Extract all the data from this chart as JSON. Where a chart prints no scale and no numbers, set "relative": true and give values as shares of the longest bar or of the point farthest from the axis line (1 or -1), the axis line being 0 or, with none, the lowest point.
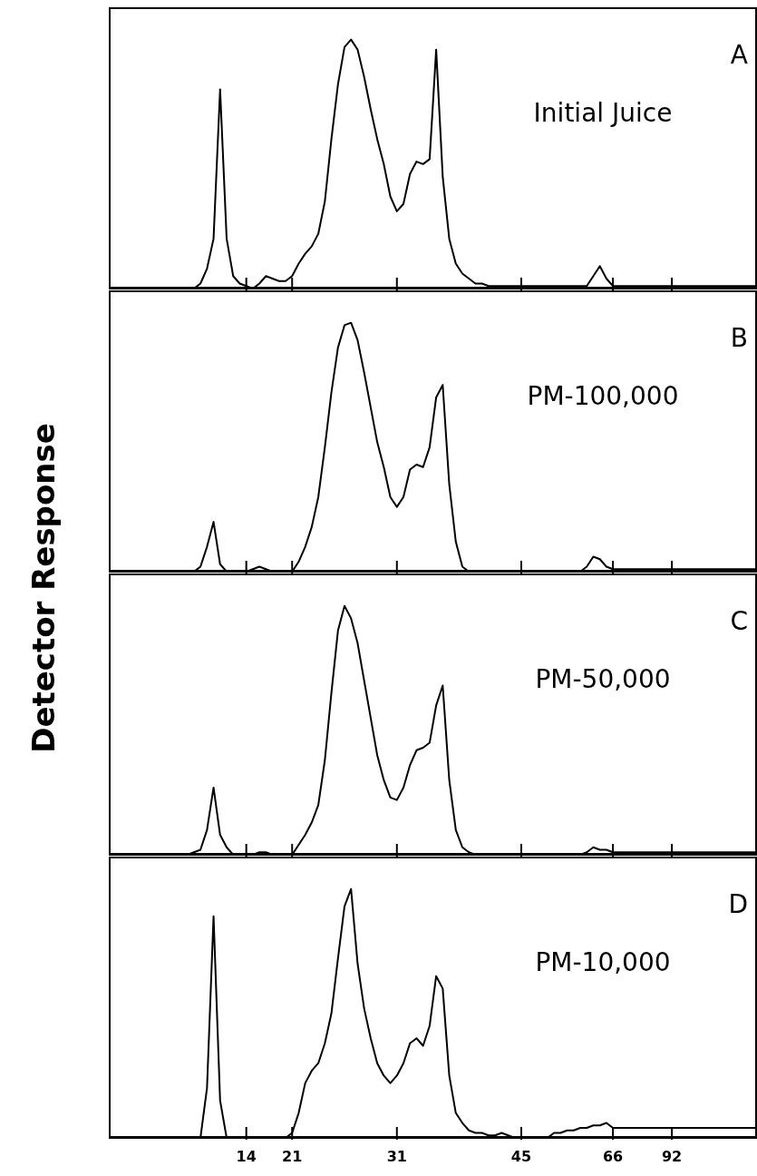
{
  "chart_data": [
    {
      "type": "line",
      "ylabel": "Detector Response",
      "relative": true,
      "tick_labels": false,
      "annotations": [
        "A",
        "Initial Juice"
      ],
      "categories": [
        null,
        null,
        null,
        null,
        null,
        null,
        null,
        null,
        null,
        null,
        null,
        null,
        null,
        null,
        null,
        null,
        null,
        null,
        null,
        null,
        null,
        "14",
        null,
        null,
        null,
        null,
        null,
        null,
        "21",
        null,
        null,
        null,
        null,
        null,
        null,
        null,
        null,
        null,
        null,
        null,
        null,
        null,
        null,
        null,
        "31",
        null,
        null,
        null,
        null,
        null,
        null,
        null,
        null,
        null,
        null,
        null,
        null,
        null,
        null,
        null,
        null,
        null,
        null,
        "45",
        null,
        null,
        null,
        null,
        null,
        null,
        null,
        null,
        null,
        null,
        null,
        null,
        null,
        "66",
        null,
        null,
        null,
        null,
        null,
        null,
        null,
        null,
        "92",
        null,
        null,
        null,
        null,
        null,
        null,
        null,
        null,
        null,
        null,
        null,
        null,
        null
      ],
      "series": [
        {
          "color": "#000000",
          "values": [
            0,
            0,
            0,
            0,
            0,
            0,
            0,
            0,
            0,
            0,
            0,
            0,
            0,
            0,
            0.02,
            0.08,
            0.2,
            0.8,
            0.2,
            0.05,
            0.02,
            0.01,
            0,
            0.02,
            0.05,
            0.04,
            0.03,
            0.03,
            0.05,
            0.1,
            0.14,
            0.17,
            0.22,
            0.35,
            0.6,
            0.82,
            0.97,
            1,
            0.96,
            0.85,
            0.72,
            0.6,
            0.5,
            0.37,
            0.31,
            0.34,
            0.46,
            0.51,
            0.5,
            0.52,
            0.96,
            0.45,
            0.2,
            0.1,
            0.06,
            0.04,
            0.02,
            0.02,
            0.01,
            0.01,
            0.01,
            0.01,
            0.01,
            0.01,
            0.01,
            0.01,
            0.01,
            0.01,
            0.01,
            0.01,
            0.01,
            0.01,
            0.01,
            0.01,
            0.05,
            0.09,
            0.04,
            0.01,
            0.01,
            0.01,
            0.01,
            0.01,
            0.01,
            0.01,
            0.01,
            0.01,
            0.01,
            0.01,
            0.01,
            0.01,
            0.01,
            0.01,
            0.01,
            0.01,
            0.01,
            0.01,
            0.01,
            0.01,
            0.01,
            0.01
          ]
        }
      ]
    },
    {
      "type": "line",
      "relative": true,
      "tick_labels": false,
      "annotations": [
        "B",
        "PM-100,000"
      ],
      "categories": [
        null,
        null,
        null,
        null,
        null,
        null,
        null,
        null,
        null,
        null,
        null,
        null,
        null,
        null,
        null,
        null,
        null,
        null,
        null,
        null,
        null,
        "14",
        null,
        null,
        null,
        null,
        null,
        null,
        "21",
        null,
        null,
        null,
        null,
        null,
        null,
        null,
        null,
        null,
        null,
        null,
        null,
        null,
        null,
        null,
        "31",
        null,
        null,
        null,
        null,
        null,
        null,
        null,
        null,
        null,
        null,
        null,
        null,
        null,
        null,
        null,
        null,
        null,
        null,
        "45",
        null,
        null,
        null,
        null,
        null,
        null,
        null,
        null,
        null,
        null,
        null,
        null,
        null,
        "66",
        null,
        null,
        null,
        null,
        null,
        null,
        null,
        null,
        "92",
        null,
        null,
        null,
        null,
        null,
        null,
        null,
        null,
        null,
        null,
        null,
        null,
        null
      ],
      "series": [
        {
          "color": "#000000",
          "values": [
            0,
            0,
            0,
            0,
            0,
            0,
            0,
            0,
            0,
            0,
            0,
            0,
            0,
            0,
            0.02,
            0.1,
            0.2,
            0.03,
            0,
            0,
            0,
            0,
            0.01,
            0.02,
            0.01,
            0,
            0,
            0,
            0,
            0.04,
            0.1,
            0.18,
            0.3,
            0.5,
            0.72,
            0.9,
            0.99,
            1,
            0.93,
            0.8,
            0.66,
            0.52,
            0.42,
            0.3,
            0.26,
            0.3,
            0.41,
            0.43,
            0.42,
            0.5,
            0.7,
            0.75,
            0.35,
            0.12,
            0.02,
            0,
            0,
            0,
            0,
            0,
            0,
            0,
            0,
            0,
            0,
            0,
            0,
            0,
            0,
            0,
            0,
            0,
            0,
            0.02,
            0.06,
            0.05,
            0.02,
            0.01,
            0.01,
            0.01,
            0.01,
            0.01,
            0.01,
            0.01,
            0.01,
            0.01,
            0.01,
            0.01,
            0.01,
            0.01,
            0.01,
            0.01,
            0.01,
            0.01,
            0.01,
            0.01,
            0.01,
            0.01,
            0.01,
            0.01
          ]
        }
      ]
    },
    {
      "type": "line",
      "relative": true,
      "tick_labels": false,
      "annotations": [
        "C",
        "PM-50,000"
      ],
      "categories": [
        null,
        null,
        null,
        null,
        null,
        null,
        null,
        null,
        null,
        null,
        null,
        null,
        null,
        null,
        null,
        null,
        null,
        null,
        null,
        null,
        null,
        "14",
        null,
        null,
        null,
        null,
        null,
        null,
        "21",
        null,
        null,
        null,
        null,
        null,
        null,
        null,
        null,
        null,
        null,
        null,
        null,
        null,
        null,
        null,
        "31",
        null,
        null,
        null,
        null,
        null,
        null,
        null,
        null,
        null,
        null,
        null,
        null,
        null,
        null,
        null,
        null,
        null,
        null,
        "45",
        null,
        null,
        null,
        null,
        null,
        null,
        null,
        null,
        null,
        null,
        null,
        null,
        null,
        "66",
        null,
        null,
        null,
        null,
        null,
        null,
        null,
        null,
        "92",
        null,
        null,
        null,
        null,
        null,
        null,
        null,
        null,
        null,
        null,
        null,
        null,
        null
      ],
      "series": [
        {
          "color": "#000000",
          "values": [
            0,
            0,
            0,
            0,
            0,
            0,
            0,
            0,
            0,
            0,
            0,
            0,
            0,
            0.01,
            0.02,
            0.1,
            0.27,
            0.08,
            0.03,
            0,
            0,
            0,
            0,
            0.01,
            0.01,
            0,
            0,
            0,
            0,
            0.04,
            0.08,
            0.13,
            0.2,
            0.38,
            0.65,
            0.9,
            1,
            0.95,
            0.85,
            0.7,
            0.55,
            0.4,
            0.3,
            0.23,
            0.22,
            0.27,
            0.36,
            0.42,
            0.43,
            0.45,
            0.6,
            0.68,
            0.3,
            0.1,
            0.03,
            0.01,
            0,
            0,
            0,
            0,
            0,
            0,
            0,
            0,
            0,
            0,
            0,
            0,
            0,
            0,
            0,
            0,
            0,
            0.01,
            0.03,
            0.02,
            0.02,
            0.01,
            0.01,
            0.01,
            0.01,
            0.01,
            0.01,
            0.01,
            0.01,
            0.01,
            0.01,
            0.01,
            0.01,
            0.01,
            0.01,
            0.01,
            0.01,
            0.01,
            0.01,
            0.01,
            0.01,
            0.01,
            0.01,
            0.01
          ]
        }
      ]
    },
    {
      "type": "line",
      "relative": true,
      "annotations": [
        "D",
        "PM-10,000"
      ],
      "categories": [
        null,
        null,
        null,
        null,
        null,
        null,
        null,
        null,
        null,
        null,
        null,
        null,
        null,
        null,
        null,
        null,
        null,
        null,
        null,
        null,
        null,
        "14",
        null,
        null,
        null,
        null,
        null,
        null,
        "21",
        null,
        null,
        null,
        null,
        null,
        null,
        null,
        null,
        null,
        null,
        null,
        null,
        null,
        null,
        null,
        "31",
        null,
        null,
        null,
        null,
        null,
        null,
        null,
        null,
        null,
        null,
        null,
        null,
        null,
        null,
        null,
        null,
        null,
        null,
        "45",
        null,
        null,
        null,
        null,
        null,
        null,
        null,
        null,
        null,
        null,
        null,
        null,
        null,
        "66",
        null,
        null,
        null,
        null,
        null,
        null,
        null,
        null,
        "92",
        null,
        null,
        null,
        null,
        null,
        null,
        null,
        null,
        null,
        null,
        null,
        null,
        null
      ],
      "series": [
        {
          "color": "#000000",
          "values": [
            0,
            0,
            0,
            0,
            0,
            0,
            0,
            0,
            0,
            0,
            0,
            0,
            0,
            0,
            0,
            0.2,
            0.89,
            0.15,
            0,
            0,
            0,
            0,
            0,
            0,
            0,
            0,
            0,
            0,
            0.02,
            0.1,
            0.22,
            0.27,
            0.3,
            0.38,
            0.5,
            0.72,
            0.93,
            1,
            0.7,
            0.52,
            0.4,
            0.3,
            0.25,
            0.22,
            0.25,
            0.3,
            0.38,
            0.4,
            0.37,
            0.45,
            0.65,
            0.6,
            0.25,
            0.1,
            0.06,
            0.03,
            0.02,
            0.02,
            0.01,
            0.01,
            0.02,
            0.01,
            0,
            0,
            0,
            0,
            0,
            0,
            0.02,
            0.02,
            0.03,
            0.03,
            0.04,
            0.04,
            0.05,
            0.05,
            0.06,
            0.04,
            0.04,
            0.04,
            0.04,
            0.04,
            0.04,
            0.04,
            0.04,
            0.04,
            0.04,
            0.04,
            0.04,
            0.04,
            0.04,
            0.04,
            0.04,
            0.04,
            0.04,
            0.04,
            0.04,
            0.04,
            0.04,
            0.04
          ]
        }
      ]
    }
  ]
}
